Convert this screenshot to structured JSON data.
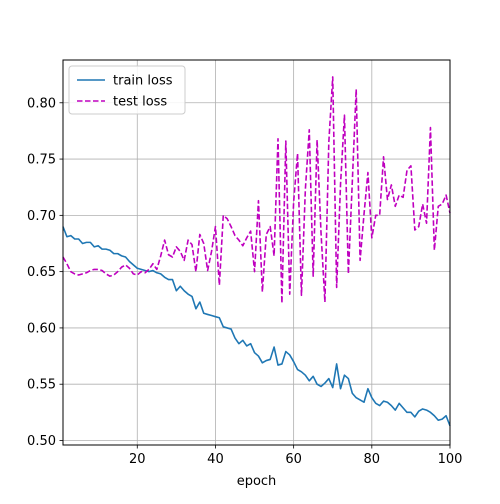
{
  "chart_data": {
    "type": "line",
    "title": "",
    "xlabel": "epoch",
    "ylabel": "",
    "xlim": [
      1,
      100
    ],
    "ylim": [
      0.496,
      0.838
    ],
    "xticks": [
      20,
      40,
      60,
      80,
      100
    ],
    "yticks": [
      0.5,
      0.55,
      0.6,
      0.65,
      0.7,
      0.75,
      0.8
    ],
    "xtick_labels": [
      "20",
      "40",
      "60",
      "80",
      "100"
    ],
    "ytick_labels": [
      "0.50",
      "0.55",
      "0.60",
      "0.65",
      "0.70",
      "0.75",
      "0.80"
    ],
    "grid": true,
    "legend_position": "top-left",
    "x": [
      1,
      2,
      3,
      4,
      5,
      6,
      7,
      8,
      9,
      10,
      11,
      12,
      13,
      14,
      15,
      16,
      17,
      18,
      19,
      20,
      21,
      22,
      23,
      24,
      25,
      26,
      27,
      28,
      29,
      30,
      31,
      32,
      33,
      34,
      35,
      36,
      37,
      38,
      39,
      40,
      41,
      42,
      43,
      44,
      45,
      46,
      47,
      48,
      49,
      50,
      51,
      52,
      53,
      54,
      55,
      56,
      57,
      58,
      59,
      60,
      61,
      62,
      63,
      64,
      65,
      66,
      67,
      68,
      69,
      70,
      71,
      72,
      73,
      74,
      75,
      76,
      77,
      78,
      79,
      80,
      81,
      82,
      83,
      84,
      85,
      86,
      87,
      88,
      89,
      90,
      91,
      92,
      93,
      94,
      95,
      96,
      97,
      98,
      99,
      100
    ],
    "series": [
      {
        "name": "train loss",
        "color": "#1f77b4",
        "dash": "solid",
        "values": [
          0.69,
          0.681,
          0.682,
          0.679,
          0.679,
          0.675,
          0.676,
          0.676,
          0.672,
          0.673,
          0.67,
          0.67,
          0.669,
          0.666,
          0.666,
          0.664,
          0.663,
          0.659,
          0.656,
          0.653,
          0.652,
          0.651,
          0.65,
          0.651,
          0.649,
          0.648,
          0.645,
          0.643,
          0.643,
          0.633,
          0.637,
          0.633,
          0.63,
          0.628,
          0.617,
          0.623,
          0.613,
          0.612,
          0.611,
          0.61,
          0.609,
          0.601,
          0.6,
          0.599,
          0.591,
          0.586,
          0.589,
          0.584,
          0.586,
          0.578,
          0.575,
          0.569,
          0.571,
          0.572,
          0.583,
          0.567,
          0.568,
          0.579,
          0.576,
          0.57,
          0.563,
          0.561,
          0.558,
          0.553,
          0.557,
          0.55,
          0.548,
          0.551,
          0.555,
          0.547,
          0.568,
          0.546,
          0.558,
          0.555,
          0.542,
          0.538,
          0.536,
          0.534,
          0.546,
          0.538,
          0.533,
          0.531,
          0.535,
          0.534,
          0.531,
          0.527,
          0.533,
          0.529,
          0.525,
          0.525,
          0.521,
          0.526,
          0.528,
          0.527,
          0.525,
          0.522,
          0.518,
          0.519,
          0.522,
          0.513
        ]
      },
      {
        "name": "test loss",
        "color": "#bf00bf",
        "dash": "dashed",
        "values": [
          0.663,
          0.657,
          0.65,
          0.648,
          0.647,
          0.648,
          0.649,
          0.651,
          0.652,
          0.652,
          0.651,
          0.648,
          0.646,
          0.647,
          0.65,
          0.654,
          0.656,
          0.653,
          0.648,
          0.647,
          0.65,
          0.649,
          0.652,
          0.657,
          0.652,
          0.664,
          0.678,
          0.665,
          0.663,
          0.672,
          0.668,
          0.66,
          0.678,
          0.674,
          0.65,
          0.683,
          0.675,
          0.651,
          0.668,
          0.69,
          0.638,
          0.7,
          0.697,
          0.69,
          0.682,
          0.678,
          0.673,
          0.68,
          0.686,
          0.65,
          0.713,
          0.632,
          0.683,
          0.69,
          0.664,
          0.768,
          0.622,
          0.766,
          0.63,
          0.712,
          0.755,
          0.629,
          0.723,
          0.776,
          0.646,
          0.767,
          0.685,
          0.623,
          0.765,
          0.823,
          0.636,
          0.728,
          0.789,
          0.648,
          0.729,
          0.812,
          0.66,
          0.701,
          0.738,
          0.68,
          0.7,
          0.7,
          0.752,
          0.714,
          0.727,
          0.708,
          0.718,
          0.716,
          0.74,
          0.744,
          0.687,
          0.69,
          0.71,
          0.693,
          0.778,
          0.669,
          0.708,
          0.71,
          0.718,
          0.702
        ]
      }
    ]
  }
}
